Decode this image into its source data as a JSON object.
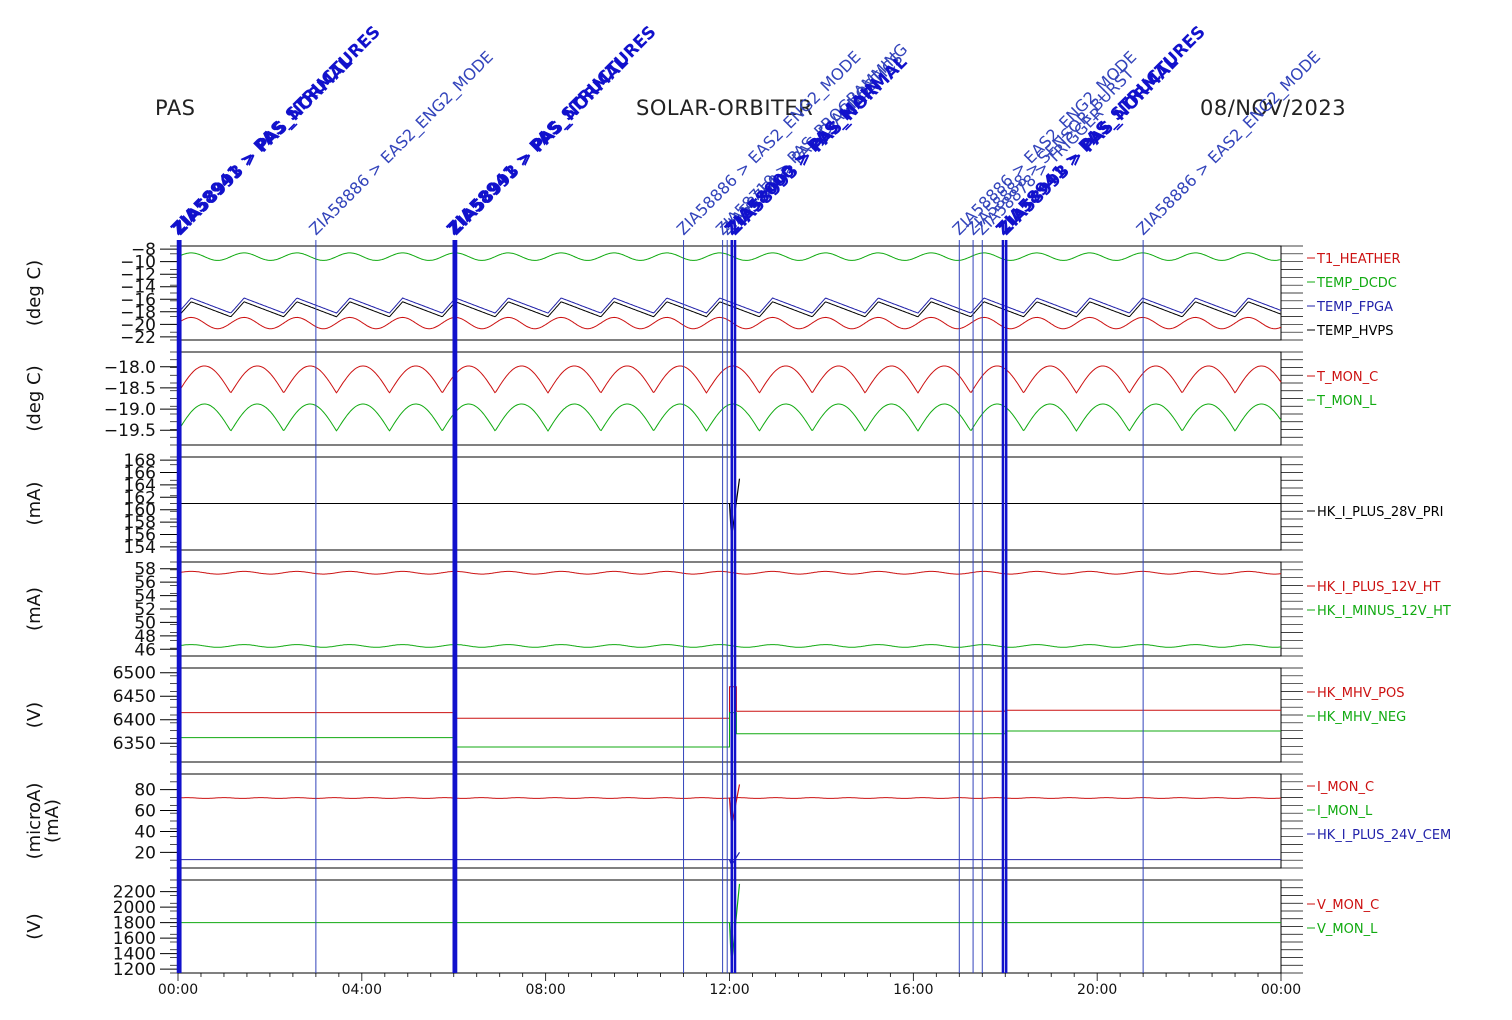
{
  "header": {
    "instrument": "PAS",
    "mission": "SOLAR-ORBITER",
    "date": "08/NOV/2023"
  },
  "colors": {
    "red": "#cc1111",
    "green": "#11aa11",
    "blue": "#2222aa",
    "black": "#000000",
    "event_dark": "#1111cc",
    "event_light": "#3344bb"
  },
  "chart_data": {
    "type": "line",
    "x_range_hours": [
      0,
      24
    ],
    "x_tick_labels": [
      "00:00",
      "04:00",
      "08:00",
      "12:00",
      "16:00",
      "20:00",
      "00:00"
    ],
    "events": [
      {
        "t": 0.0,
        "label": "ZIA58941 > PAS_STRUCTURES",
        "style": "bold"
      },
      {
        "t": 0.05,
        "label": "ZIA58993 > PAS_NORMAL",
        "style": "bold"
      },
      {
        "t": 3.0,
        "label": "ZIA58886 > EAS2_ENG2_MODE",
        "style": "light"
      },
      {
        "t": 6.0,
        "label": "ZIA58941 > PAS_STRUCTURES",
        "style": "bold"
      },
      {
        "t": 6.05,
        "label": "ZIA58993 > PAS_NORMAL",
        "style": "bold"
      },
      {
        "t": 11.0,
        "label": "ZIA58886 > EAS2_ENG2_MODE",
        "style": "light"
      },
      {
        "t": 11.85,
        "label": "ZIA58719 > PAS_PROGRAMMING",
        "style": "light"
      },
      {
        "t": 11.95,
        "label": "ZIA58750 > PAS_DIAGNOSTICS",
        "style": "light"
      },
      {
        "t": 12.05,
        "label": "ZIA58000 > PAS_MAIN",
        "style": "bold"
      },
      {
        "t": 12.12,
        "label": "ZIA58993 > PAS_NORMAL",
        "style": "bold"
      },
      {
        "t": 17.0,
        "label": "ZIA58886 > EAS2_ENG2_MODE",
        "style": "light"
      },
      {
        "t": 17.3,
        "label": "ZIA58888 > SENSOR_BURST",
        "style": "light"
      },
      {
        "t": 17.5,
        "label": "ZIA58878 > TRIGGER",
        "style": "light"
      },
      {
        "t": 17.95,
        "label": "ZIA58941 > PAS_STRUCTURES",
        "style": "bold"
      },
      {
        "t": 18.02,
        "label": "ZIA58993 > PAS_NORMAL",
        "style": "bold"
      },
      {
        "t": 21.0,
        "label": "ZIA58886 > EAS2_ENG2_MODE",
        "style": "light"
      }
    ],
    "panels": [
      {
        "ylabel": "(deg C)",
        "ylim": [
          -22.5,
          -7.5
        ],
        "y_ticks": [
          -22,
          -20,
          -18,
          -16,
          -14,
          -12,
          -10,
          -8
        ],
        "y_tick_labels": [
          "-22",
          "-20",
          "-18",
          "-16",
          "-14",
          "-12",
          "-10",
          "-8"
        ],
        "series": [
          {
            "name": "T1_HEATHER",
            "color": "red",
            "base": -19.8,
            "amp": 0.9,
            "period_h": 1.15,
            "shape": "sine"
          },
          {
            "name": "TEMP_DCDC",
            "color": "green",
            "base": -9.2,
            "amp": 0.6,
            "period_h": 1.15,
            "shape": "sine"
          },
          {
            "name": "TEMP_FPGA",
            "color": "blue",
            "base": -17.0,
            "amp": 1.2,
            "period_h": 1.15,
            "shape": "saw"
          },
          {
            "name": "TEMP_HVPS",
            "color": "black",
            "base": -17.6,
            "amp": 1.2,
            "period_h": 1.15,
            "shape": "saw"
          }
        ]
      },
      {
        "ylabel": "(deg C)",
        "ylim": [
          -19.85,
          -17.65
        ],
        "y_ticks": [
          -19.5,
          -19.0,
          -18.5,
          -18.0
        ],
        "y_tick_labels": [
          "-19.5",
          "-19.0",
          "-18.5",
          "-18.0"
        ],
        "series": [
          {
            "name": "T_MON_C",
            "color": "red",
            "base": -18.3,
            "amp": 0.32,
            "period_h": 1.15,
            "shape": "arch"
          },
          {
            "name": "T_MON_L",
            "color": "green",
            "base": -19.2,
            "amp": 0.32,
            "period_h": 1.15,
            "shape": "arch"
          }
        ]
      },
      {
        "ylabel": "(mA)",
        "ylim": [
          153.5,
          168.5
        ],
        "y_ticks": [
          154,
          156,
          158,
          160,
          162,
          164,
          166,
          168
        ],
        "y_tick_labels": [
          "154",
          "156",
          "158",
          "160",
          "162",
          "164",
          "166",
          "168"
        ],
        "series": [
          {
            "name": "HK_I_PLUS_28V_PRI",
            "color": "black",
            "base": 161.0,
            "amp": 0.05,
            "period_h": 0.5,
            "shape": "flat",
            "spike": {
              "t": 12.0,
              "low": 155.5,
              "high": 165.0
            }
          }
        ]
      },
      {
        "ylabel": "(mA)",
        "ylim": [
          45,
          59
        ],
        "y_ticks": [
          46,
          48,
          50,
          52,
          54,
          56,
          58
        ],
        "y_tick_labels": [
          "46",
          "48",
          "50",
          "52",
          "54",
          "56",
          "58"
        ],
        "series": [
          {
            "name": "HK_I_PLUS_12V_HT",
            "color": "red",
            "base": 57.4,
            "amp": 0.2,
            "period_h": 1.15,
            "shape": "sine"
          },
          {
            "name": "HK_I_MINUS_12V_HT",
            "color": "green",
            "base": 46.5,
            "amp": 0.2,
            "period_h": 1.15,
            "shape": "sine"
          }
        ]
      },
      {
        "ylabel": "(V)",
        "ylim": [
          6310,
          6510
        ],
        "y_ticks": [
          6350,
          6400,
          6450,
          6500
        ],
        "y_tick_labels": [
          "6350",
          "6400",
          "6450",
          "6500"
        ],
        "series": [
          {
            "name": "HK_MHV_POS",
            "color": "red",
            "steps": [
              [
                0,
                6415
              ],
              [
                6.0,
                6403
              ],
              [
                12.0,
                6470
              ],
              [
                12.15,
                6418
              ],
              [
                18.0,
                6420
              ]
            ]
          },
          {
            "name": "HK_MHV_NEG",
            "color": "green",
            "steps": [
              [
                0,
                6362
              ],
              [
                6.0,
                6342
              ],
              [
                12.0,
                6415
              ],
              [
                12.15,
                6370
              ],
              [
                18.0,
                6376
              ]
            ]
          }
        ]
      },
      {
        "ylabel": "(microA)",
        "ylabel2": "(mA)",
        "ylim": [
          5,
          95
        ],
        "y_ticks": [
          20,
          40,
          60,
          80
        ],
        "y_tick_labels": [
          "20",
          "40",
          "60",
          "80"
        ],
        "series": [
          {
            "name": "I_MON_C",
            "color": "red",
            "base": 72,
            "amp": 0.4,
            "period_h": 0.8,
            "shape": "sine",
            "spike": {
              "t": 12.0,
              "low": 45,
              "high": 85
            }
          },
          {
            "name": "I_MON_L",
            "color": "green",
            "base": 0,
            "amp": 0,
            "shape": "flat",
            "hidden": true
          },
          {
            "name": "HK_I_PLUS_24V_CEM",
            "color": "blue",
            "base": 13,
            "amp": 0,
            "shape": "flat",
            "spike": {
              "t": 12.0,
              "low": 8,
              "high": 20
            }
          }
        ]
      },
      {
        "ylabel": "(V)",
        "ylim": [
          1150,
          2350
        ],
        "y_ticks": [
          1200,
          1400,
          1600,
          1800,
          2000,
          2200
        ],
        "y_tick_labels": [
          "1200",
          "1400",
          "1600",
          "1800",
          "2000",
          "2200"
        ],
        "series": [
          {
            "name": "V_MON_C",
            "color": "red",
            "base": 1800,
            "amp": 0,
            "shape": "flat",
            "hidden": true
          },
          {
            "name": "V_MON_L",
            "color": "green",
            "base": 1800,
            "amp": 0,
            "shape": "flat",
            "spike": {
              "t": 12.0,
              "low": 1250,
              "high": 2300
            }
          }
        ]
      }
    ]
  }
}
